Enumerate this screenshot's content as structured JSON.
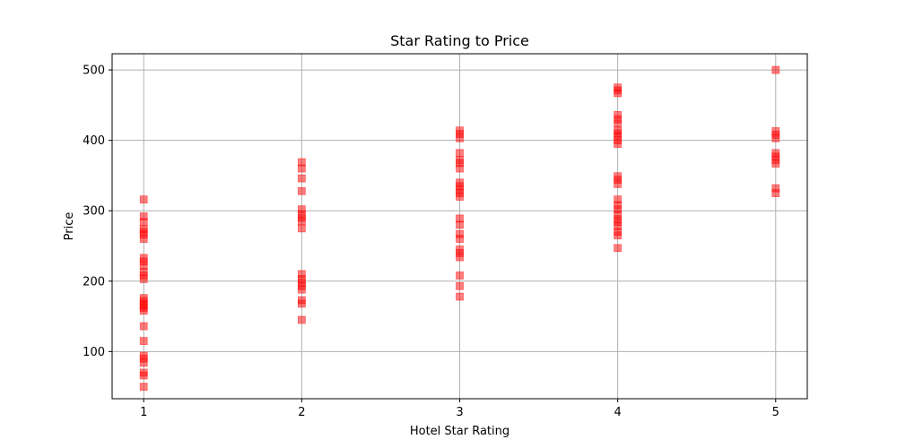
{
  "chart_data": {
    "type": "scatter",
    "title": "Star Rating to Price",
    "xlabel": "Hotel Star Rating",
    "ylabel": "Price",
    "xlim": [
      0.8,
      5.2
    ],
    "ylim": [
      33,
      523
    ],
    "xticks": [
      1,
      2,
      3,
      4,
      5
    ],
    "yticks": [
      100,
      200,
      300,
      400,
      500
    ],
    "grid": true,
    "marker": "square",
    "color": "#ff0000",
    "alpha": 0.5,
    "series": [
      {
        "points": [
          [
            1,
            50
          ],
          [
            1,
            66
          ],
          [
            1,
            70
          ],
          [
            1,
            84
          ],
          [
            1,
            90
          ],
          [
            1,
            94
          ],
          [
            1,
            115
          ],
          [
            1,
            136
          ],
          [
            1,
            158
          ],
          [
            1,
            162
          ],
          [
            1,
            165
          ],
          [
            1,
            168
          ],
          [
            1,
            172
          ],
          [
            1,
            176
          ],
          [
            1,
            203
          ],
          [
            1,
            208
          ],
          [
            1,
            213
          ],
          [
            1,
            222
          ],
          [
            1,
            228
          ],
          [
            1,
            233
          ],
          [
            1,
            260
          ],
          [
            1,
            266
          ],
          [
            1,
            270
          ],
          [
            1,
            274
          ],
          [
            1,
            284
          ],
          [
            1,
            292
          ],
          [
            1,
            316
          ],
          [
            2,
            145
          ],
          [
            2,
            168
          ],
          [
            2,
            173
          ],
          [
            2,
            188
          ],
          [
            2,
            193
          ],
          [
            2,
            198
          ],
          [
            2,
            203
          ],
          [
            2,
            210
          ],
          [
            2,
            275
          ],
          [
            2,
            285
          ],
          [
            2,
            290
          ],
          [
            2,
            295
          ],
          [
            2,
            302
          ],
          [
            2,
            328
          ],
          [
            2,
            346
          ],
          [
            2,
            360
          ],
          [
            2,
            369
          ],
          [
            3,
            178
          ],
          [
            3,
            193
          ],
          [
            3,
            208
          ],
          [
            3,
            234
          ],
          [
            3,
            240
          ],
          [
            3,
            245
          ],
          [
            3,
            260
          ],
          [
            3,
            267
          ],
          [
            3,
            280
          ],
          [
            3,
            289
          ],
          [
            3,
            320
          ],
          [
            3,
            325
          ],
          [
            3,
            330
          ],
          [
            3,
            335
          ],
          [
            3,
            340
          ],
          [
            3,
            360
          ],
          [
            3,
            368
          ],
          [
            3,
            372
          ],
          [
            3,
            382
          ],
          [
            3,
            403
          ],
          [
            3,
            409
          ],
          [
            3,
            414
          ],
          [
            4,
            247
          ],
          [
            4,
            265
          ],
          [
            4,
            270
          ],
          [
            4,
            278
          ],
          [
            4,
            284
          ],
          [
            4,
            288
          ],
          [
            4,
            295
          ],
          [
            4,
            302
          ],
          [
            4,
            308
          ],
          [
            4,
            316
          ],
          [
            4,
            338
          ],
          [
            4,
            344
          ],
          [
            4,
            349
          ],
          [
            4,
            395
          ],
          [
            4,
            400
          ],
          [
            4,
            406
          ],
          [
            4,
            410
          ],
          [
            4,
            414
          ],
          [
            4,
            424
          ],
          [
            4,
            430
          ],
          [
            4,
            436
          ],
          [
            4,
            467
          ],
          [
            4,
            471
          ],
          [
            4,
            475
          ],
          [
            5,
            325
          ],
          [
            5,
            332
          ],
          [
            5,
            367
          ],
          [
            5,
            372
          ],
          [
            5,
            377
          ],
          [
            5,
            382
          ],
          [
            5,
            403
          ],
          [
            5,
            408
          ],
          [
            5,
            413
          ],
          [
            5,
            500
          ]
        ]
      }
    ]
  }
}
